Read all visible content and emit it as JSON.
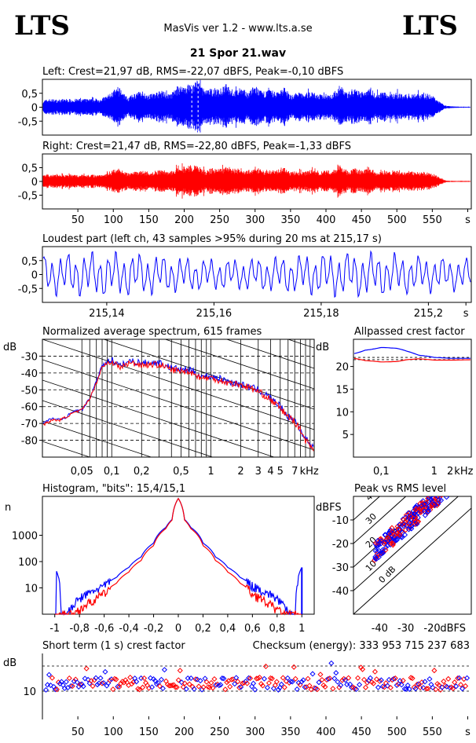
{
  "header": {
    "logo_left": "LTS",
    "logo_right": "LTS",
    "app_title": "MasVis ver 1.2 - www.lts.a.se",
    "file_name": "21 Spor 21.wav"
  },
  "colors": {
    "left": "#0000ff",
    "right": "#ff0000",
    "grid": "#000000",
    "background": "#ffffff"
  },
  "chart_data": [
    {
      "type": "line",
      "name": "left-waveform",
      "title": "Left: Crest=21,97 dB, RMS=-22,07 dBFS, Peak=-0,10 dBFS",
      "color": "#0000ff",
      "ylim": [
        -1,
        1
      ],
      "yticks": [
        "0,5",
        "0",
        "-0,5"
      ],
      "ytick_values": [
        0.5,
        0,
        -0.5
      ],
      "xlim": [
        0,
        605
      ],
      "envelope": {
        "t": [
          0,
          10,
          20,
          30,
          40,
          50,
          60,
          70,
          80,
          90,
          100,
          110,
          120,
          130,
          140,
          150,
          160,
          170,
          180,
          190,
          200,
          210,
          220,
          230,
          240,
          250,
          260,
          270,
          280,
          290,
          300,
          310,
          320,
          330,
          340,
          350,
          360,
          370,
          380,
          390,
          400,
          410,
          420,
          430,
          440,
          450,
          460,
          470,
          480,
          490,
          500,
          510,
          520,
          530,
          540,
          550,
          560,
          570,
          580,
          590,
          600
        ],
        "amp": [
          0.25,
          0.3,
          0.28,
          0.3,
          0.3,
          0.3,
          0.3,
          0.3,
          0.3,
          0.4,
          0.6,
          0.7,
          0.35,
          0.5,
          0.6,
          0.45,
          0.55,
          0.6,
          0.45,
          0.75,
          0.8,
          0.85,
          0.98,
          0.6,
          0.7,
          0.65,
          0.85,
          0.6,
          0.7,
          0.55,
          0.8,
          0.55,
          0.65,
          0.55,
          0.75,
          0.45,
          0.55,
          0.5,
          0.6,
          0.45,
          0.5,
          0.5,
          0.8,
          0.55,
          0.65,
          0.55,
          0.75,
          0.5,
          0.6,
          0.45,
          0.55,
          0.45,
          0.5,
          0.5,
          0.5,
          0.45,
          0.2,
          0.05,
          0.03,
          0.02,
          0.02
        ]
      }
    },
    {
      "type": "line",
      "name": "right-waveform",
      "title": "Right: Crest=21,47 dB, RMS=-22,80 dBFS, Peak=-1,33 dBFS",
      "color": "#ff0000",
      "ylim": [
        -1,
        1
      ],
      "yticks": [
        "0,5",
        "0",
        "-0,5"
      ],
      "ytick_values": [
        0.5,
        0,
        -0.5
      ],
      "xlim": [
        0,
        605
      ],
      "xticks": [
        "50",
        "100",
        "150",
        "200",
        "250",
        "300",
        "350",
        "400",
        "450",
        "500",
        "550",
        "s"
      ],
      "xtick_values": [
        50,
        100,
        150,
        200,
        250,
        300,
        350,
        400,
        450,
        500,
        550,
        600
      ],
      "envelope": {
        "t": [
          0,
          10,
          20,
          30,
          40,
          50,
          60,
          70,
          80,
          90,
          100,
          110,
          120,
          130,
          140,
          150,
          160,
          170,
          180,
          190,
          200,
          210,
          220,
          230,
          240,
          250,
          260,
          270,
          280,
          290,
          300,
          310,
          320,
          330,
          340,
          350,
          360,
          370,
          380,
          390,
          400,
          410,
          420,
          430,
          440,
          450,
          460,
          470,
          480,
          490,
          500,
          510,
          520,
          530,
          540,
          550,
          560,
          570,
          580,
          590,
          600
        ],
        "amp": [
          0.22,
          0.25,
          0.25,
          0.25,
          0.25,
          0.25,
          0.25,
          0.25,
          0.25,
          0.3,
          0.45,
          0.5,
          0.3,
          0.35,
          0.4,
          0.35,
          0.4,
          0.45,
          0.35,
          0.5,
          0.55,
          0.6,
          0.55,
          0.4,
          0.5,
          0.45,
          0.6,
          0.45,
          0.5,
          0.4,
          0.55,
          0.4,
          0.45,
          0.4,
          0.55,
          0.35,
          0.4,
          0.35,
          0.45,
          0.35,
          0.4,
          0.4,
          0.65,
          0.4,
          0.5,
          0.4,
          0.55,
          0.35,
          0.45,
          0.35,
          0.4,
          0.35,
          0.4,
          0.35,
          0.35,
          0.3,
          0.15,
          0.03,
          0.02,
          0.02,
          0.02
        ]
      }
    },
    {
      "type": "line",
      "name": "loudest-part",
      "title": "Loudest part (left  ch, 43 samples >95% during 20 ms at 215,17 s)",
      "color": "#0000ff",
      "xlim": [
        215.128,
        215.208
      ],
      "ylim": [
        -1,
        1
      ],
      "yticks": [
        "0,5",
        "0",
        "-0,5"
      ],
      "ytick_values": [
        0.5,
        0,
        -0.5
      ],
      "xticks": [
        "215,14",
        "215,16",
        "215,18",
        "215,2",
        "s"
      ],
      "xtick_values": [
        215.14,
        215.16,
        215.18,
        215.2,
        215.207
      ]
    },
    {
      "type": "line",
      "name": "spectrum",
      "title": "Normalized average spectrum, 615 frames",
      "ylabel": "dB",
      "xlabel": "kHz",
      "xscale": "log",
      "xlim": [
        0.02,
        11
      ],
      "ylim": [
        -90,
        -20
      ],
      "yticks": [
        "-30",
        "-40",
        "-50",
        "-60",
        "-70",
        "-80"
      ],
      "ytick_values": [
        -30,
        -40,
        -50,
        -60,
        -70,
        -80
      ],
      "xticks": [
        "0,05",
        "0,1",
        "0,2",
        "0,5",
        "1",
        "2",
        "3",
        "4",
        "5",
        "7",
        "kHz"
      ],
      "xtick_values": [
        0.05,
        0.1,
        0.2,
        0.5,
        1,
        2,
        3,
        4,
        5,
        7,
        9.8
      ],
      "series": [
        {
          "color": "#0000ff",
          "x": [
            0.02,
            0.025,
            0.03,
            0.035,
            0.04,
            0.05,
            0.06,
            0.07,
            0.08,
            0.1,
            0.12,
            0.15,
            0.2,
            0.3,
            0.4,
            0.5,
            0.6,
            0.8,
            1,
            1.5,
            2,
            3,
            4,
            5,
            6,
            7,
            8,
            9,
            10,
            11
          ],
          "y": [
            -70,
            -67,
            -68,
            -66,
            -63,
            -62,
            -55,
            -45,
            -35,
            -32,
            -36,
            -33,
            -34,
            -34,
            -37,
            -38,
            -38,
            -42,
            -42,
            -45,
            -47,
            -50,
            -55,
            -60,
            -66,
            -68,
            -74,
            -79,
            -82,
            -84
          ]
        },
        {
          "color": "#ff0000",
          "x": [
            0.02,
            0.025,
            0.03,
            0.035,
            0.04,
            0.05,
            0.06,
            0.07,
            0.08,
            0.1,
            0.12,
            0.15,
            0.2,
            0.3,
            0.4,
            0.5,
            0.6,
            0.8,
            1,
            1.5,
            2,
            3,
            4,
            5,
            6,
            7,
            8,
            9,
            10,
            11
          ],
          "y": [
            -71,
            -68,
            -68,
            -66,
            -64,
            -62,
            -55,
            -46,
            -36,
            -33,
            -37,
            -34,
            -35,
            -35,
            -38,
            -39,
            -39,
            -43,
            -43,
            -46,
            -47,
            -51,
            -56,
            -61,
            -66,
            -69,
            -74,
            -80,
            -83,
            -85
          ]
        }
      ]
    },
    {
      "type": "line",
      "name": "allpassed-crest",
      "title": "Allpassed crest factor",
      "ylabel": "dB",
      "xlabel": "kHz",
      "xscale": "log",
      "xlim": [
        0.03,
        5
      ],
      "ylim": [
        0,
        26
      ],
      "yticks": [
        "20",
        "15",
        "10",
        "5"
      ],
      "ytick_values": [
        20,
        15,
        10,
        5
      ],
      "xticks": [
        "0,1",
        "1",
        "2",
        "kHz"
      ],
      "xtick_values": [
        0.1,
        1,
        2,
        3.6
      ],
      "series": [
        {
          "color": "#0000ff",
          "x": [
            0.03,
            0.05,
            0.1,
            0.2,
            0.3,
            0.5,
            1,
            2,
            5
          ],
          "y": [
            22.8,
            23.6,
            24.2,
            24.0,
            23.4,
            22.5,
            22.0,
            21.8,
            21.8
          ]
        },
        {
          "color": "#ff0000",
          "x": [
            0.03,
            0.05,
            0.1,
            0.2,
            0.3,
            0.5,
            1,
            2,
            5
          ],
          "y": [
            21.8,
            21.3,
            21.0,
            21.1,
            21.5,
            21.7,
            21.4,
            21.4,
            21.5
          ]
        }
      ],
      "reference_lines": [
        22.0,
        21.5
      ]
    },
    {
      "type": "line",
      "name": "histogram",
      "title": "Histogram, \"bits\": 15,4/15,1",
      "ylabel": "n",
      "yscale": "log",
      "xlim": [
        -1.1,
        1.1
      ],
      "ylim": [
        1,
        30000
      ],
      "yticks": [
        "1000",
        "100",
        "10"
      ],
      "ytick_values": [
        1000,
        100,
        10
      ],
      "xticks": [
        "-1",
        "-0,8",
        "-0,6",
        "-0,4",
        "-0,2",
        "0",
        "0,2",
        "0,4",
        "0,6",
        "0,8",
        "1"
      ],
      "xtick_values": [
        -1,
        -0.8,
        -0.6,
        -0.4,
        -0.2,
        0,
        0.2,
        0.4,
        0.6,
        0.8,
        1
      ],
      "series": [
        {
          "color": "#0000ff",
          "x": [
            0,
            0.05,
            0.1,
            0.2,
            0.3,
            0.4,
            0.5,
            0.6,
            0.7,
            0.8,
            0.85,
            0.9,
            0.95,
            1.0
          ],
          "y": [
            25000,
            4000,
            2000,
            500,
            150,
            60,
            25,
            12,
            7,
            4,
            2,
            1,
            1,
            60
          ]
        },
        {
          "color": "#ff0000",
          "x": [
            0,
            0.05,
            0.1,
            0.2,
            0.3,
            0.4,
            0.5,
            0.6,
            0.7,
            0.8,
            0.85,
            0.9,
            0.95,
            1.0
          ],
          "y": [
            25000,
            3800,
            1800,
            400,
            110,
            40,
            15,
            6,
            3,
            1.5,
            1,
            1,
            1,
            1
          ]
        }
      ]
    },
    {
      "type": "scatter",
      "name": "peak-vs-rms",
      "title": "Peak vs RMS level",
      "ylabel": "dBFS",
      "xlabel": "dBFS",
      "xlim": [
        -50,
        -5
      ],
      "ylim": [
        -50,
        0
      ],
      "yticks": [
        "-10",
        "-20",
        "-30",
        "-40"
      ],
      "ytick_values": [
        -10,
        -20,
        -30,
        -40
      ],
      "xticks": [
        "-40",
        "-30",
        "-20",
        "dBFS"
      ],
      "xtick_values": [
        -40,
        -30,
        -20,
        -12
      ],
      "diagonal_labels": [
        "40",
        "30",
        "20",
        "10",
        "0 dB"
      ],
      "diagonal_offsets": [
        40,
        30,
        20,
        10,
        0
      ]
    },
    {
      "type": "scatter",
      "name": "short-term-crest",
      "title": "Short term (1 s) crest factor",
      "checksum": "Checksum (energy):  333 953 715 237 683",
      "ylabel": "dB",
      "ylim": [
        0,
        25
      ],
      "yticks": [
        "10"
      ],
      "ytick_values": [
        10
      ],
      "reference_lines": [
        10,
        20
      ],
      "xlim": [
        0,
        605
      ],
      "xticks": [
        "50",
        "100",
        "150",
        "200",
        "250",
        "300",
        "350",
        "400",
        "450",
        "500",
        "550",
        "s"
      ],
      "xtick_values": [
        50,
        100,
        150,
        200,
        250,
        300,
        350,
        400,
        450,
        500,
        550,
        600
      ]
    }
  ]
}
